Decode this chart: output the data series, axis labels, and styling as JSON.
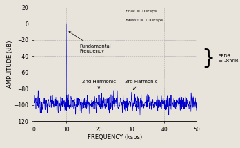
{
  "title": "",
  "xlabel": "FREQUENCY (ksps)",
  "ylabel": "AMPLITUDE (dB)",
  "xlim": [
    0,
    50
  ],
  "ylim": [
    -120,
    20
  ],
  "xticks": [
    0,
    10,
    20,
    30,
    40,
    50
  ],
  "yticks": [
    -120,
    -100,
    -80,
    -60,
    -40,
    -20,
    0,
    20
  ],
  "fundamental_freq": 10,
  "fundamental_amp": 0,
  "harmonic2_freq": 20,
  "harmonic2_amp": -84,
  "harmonic3_freq": 30,
  "harmonic3_amp": -84,
  "noise_floor_mean": -98,
  "noise_floor_std": 5,
  "line_color": "#0000CC",
  "bg_color": "#e8e4dc",
  "plot_bg_color": "#e8e4dc",
  "grid_color": "#aaaaaa",
  "annotation_fontsize": 5.0,
  "label_fontsize": 6.0,
  "tick_fontsize": 5.5,
  "sfdr_value": "= -85dB",
  "ftone_label": "f",
  "ftone_sub": "TONE",
  "ftone_val": " = 10ksps",
  "fsample_label": "f",
  "fsample_sub": "SAMPLE",
  "fsample_val": " = 100ksps"
}
